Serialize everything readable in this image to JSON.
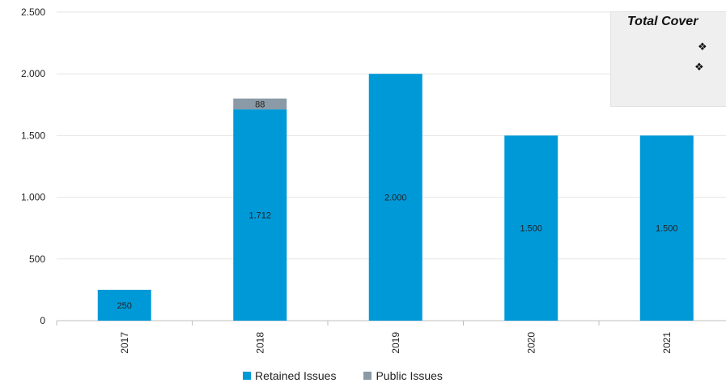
{
  "chart_data": {
    "type": "bar",
    "stacked": true,
    "categories": [
      "2017",
      "2018",
      "2019",
      "2020",
      "2021"
    ],
    "series": [
      {
        "name": "Retained Issues",
        "color": "#0099d8",
        "values": [
          250,
          1712,
          2000,
          1500,
          1500
        ],
        "labels": [
          "250",
          "1.712",
          "2.000",
          "1.500",
          "1.500"
        ]
      },
      {
        "name": "Public Issues",
        "color": "#8a9aa6",
        "values": [
          0,
          88,
          0,
          0,
          0
        ],
        "labels": [
          "",
          "88",
          "",
          "",
          ""
        ]
      }
    ],
    "ylim": [
      0,
      2500
    ],
    "yticks": [
      {
        "value": 0,
        "label": "0"
      },
      {
        "value": 500,
        "label": "500"
      },
      {
        "value": 1000,
        "label": "1.000"
      },
      {
        "value": 1500,
        "label": "1.500"
      },
      {
        "value": 2000,
        "label": "2.000"
      },
      {
        "value": 2500,
        "label": "2.500"
      }
    ],
    "grid": true,
    "legend_position": "bottom",
    "title": "",
    "xlabel": "",
    "ylabel": ""
  },
  "info_box": {
    "title": "Total Cover",
    "bullets": [
      "❖",
      "❖"
    ]
  }
}
